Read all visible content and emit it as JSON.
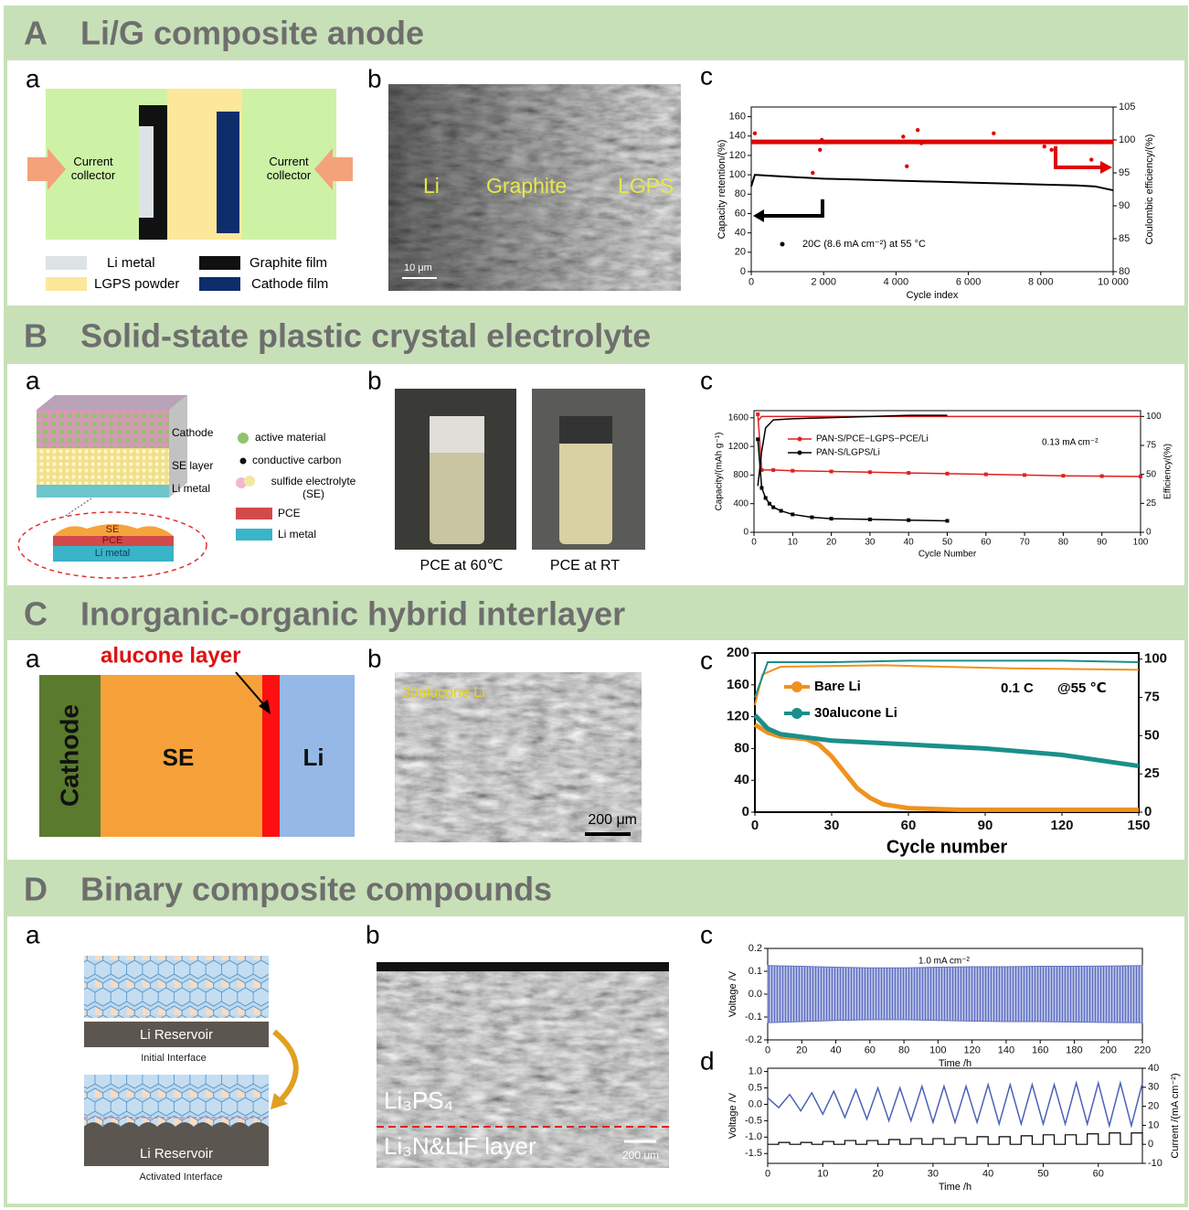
{
  "sections": [
    {
      "letter": "A",
      "title": "Li/G composite anode",
      "panels": [
        {
          "label": "a",
          "texts": [
            "Current collector",
            "Current collector",
            "Li metal",
            "Graphite film",
            "LGPS powder",
            "Cathode film"
          ]
        },
        {
          "label": "b",
          "texts": [
            "Li",
            "Graphite",
            "LGPS",
            "10 μm"
          ]
        },
        {
          "label": "c",
          "chart_data": {
            "type": "line",
            "xlim": [
              0,
              10000
            ],
            "xticks": [
              0,
              {
                "value": 2000,
                "label": "2 000"
              },
              {
                "value": 4000,
                "label": "4 000"
              },
              {
                "value": 6000,
                "label": "6 000"
              },
              {
                "value": 8000,
                "label": "8 000"
              },
              {
                "value": 10000,
                "label": "10 000"
              }
            ],
            "ylim": [
              0,
              170
            ],
            "yticks": [
              0,
              20,
              40,
              60,
              80,
              100,
              120,
              140,
              160
            ],
            "y2lim": [
              80,
              105
            ],
            "y2ticks": [
              80,
              85,
              90,
              95,
              100,
              105
            ],
            "xlabel": "Cycle index",
            "ylabel": "Capacity retention/(%)",
            "y2label": "Coulombic efficiency/(%)",
            "annotations": [
              "20C (8.6 mA cm⁻²) at 55 °C"
            ],
            "series": [
              {
                "color": "#000000",
                "mode": "line",
                "x": [
                  0,
                  100,
                  500,
                  1000,
                  2000,
                  3000,
                  4000,
                  5000,
                  6000,
                  7000,
                  8000,
                  9000,
                  9500,
                  10000
                ],
                "values": [
                  88,
                  100,
                  99,
                  98,
                  96,
                  95,
                  94,
                  93,
                  92,
                  91,
                  90,
                  89,
                  88,
                  84
                ]
              },
              {
                "color": "#e00000",
                "mode": "line",
                "axis": "y2",
                "x": [
                  0,
                  10000
                ],
                "values": [
                  99.7,
                  99.7
                ]
              },
              {
                "color": "#e00000",
                "mode": "points",
                "axis": "y2",
                "x": [
                  100,
                  1700,
                  1900,
                  1950,
                  4200,
                  4300,
                  4600,
                  4700,
                  6700,
                  8100,
                  8300,
                  9400
                ],
                "values": [
                  101,
                  95,
                  98.5,
                  100,
                  100.5,
                  96,
                  101.5,
                  99.5,
                  101,
                  99,
                  98.5,
                  97
                ]
              }
            ]
          }
        }
      ]
    },
    {
      "letter": "B",
      "title": "Solid-state plastic crystal electrolyte",
      "panels": [
        {
          "label": "a",
          "texts": [
            "Cathode",
            "SE layer",
            "Li metal",
            "active material",
            "conductive carbon",
            "sulfide electrolyte (SE)",
            "PCE",
            "Li metal",
            "SE",
            "PCE",
            "Li metal"
          ]
        },
        {
          "label": "b",
          "texts": [
            "PCE at 60℃",
            "PCE at RT"
          ]
        },
        {
          "label": "c",
          "chart_data": {
            "type": "line",
            "xlim": [
              0,
              100
            ],
            "xticks": [
              0,
              10,
              20,
              30,
              40,
              50,
              60,
              70,
              80,
              90,
              100
            ],
            "ylim": [
              0,
              1700
            ],
            "yticks": [
              0,
              400,
              800,
              1200,
              1600
            ],
            "y2lim": [
              0,
              105
            ],
            "y2ticks": [
              0,
              25,
              50,
              75,
              100
            ],
            "xlabel": "Cycle Number",
            "ylabel": "Capacity/(mAh g⁻¹)",
            "y2label": "Efficiency/(%)",
            "annotations": [
              "0.13 mA cm⁻²"
            ],
            "series": [
              {
                "name": "PAN-S/PCE−LGPS−PCE/Li",
                "color": "#e02020",
                "mode": "line+points",
                "x": [
                  1,
                  2,
                  5,
                  10,
                  20,
                  30,
                  40,
                  50,
                  60,
                  70,
                  80,
                  90,
                  100
                ],
                "values": [
                  1650,
                  870,
                  870,
                  860,
                  850,
                  840,
                  830,
                  820,
                  810,
                  800,
                  790,
                  785,
                  780
                ]
              },
              {
                "name": "PAN-S/LGPS/Li",
                "color": "#000000",
                "mode": "line+points",
                "x": [
                  1,
                  2,
                  3,
                  4,
                  5,
                  7,
                  10,
                  15,
                  20,
                  30,
                  40,
                  50
                ],
                "values": [
                  1300,
                  620,
                  480,
                  400,
                  350,
                  300,
                  250,
                  210,
                  190,
                  180,
                  170,
                  160
                ]
              },
              {
                "color": "#e02020",
                "mode": "line",
                "axis": "y2",
                "x": [
                  1,
                  2,
                  100
                ],
                "values": [
                  96,
                  100,
                  100
                ]
              },
              {
                "color": "#000000",
                "mode": "line",
                "axis": "y2",
                "x": [
                  1,
                  2,
                  3,
                  5,
                  10,
                  20,
                  30,
                  40,
                  50
                ],
                "values": [
                  40,
                  70,
                  90,
                  97,
                  98,
                  99,
                  100,
                  101,
                  101
                ]
              }
            ]
          }
        }
      ]
    },
    {
      "letter": "C",
      "title": "Inorganic-organic hybrid interlayer",
      "panels": [
        {
          "label": "a",
          "texts": [
            "alucone layer",
            "Cathode",
            "SE",
            "Li"
          ]
        },
        {
          "label": "b",
          "texts": [
            "30alucone Li",
            "200 μm"
          ]
        },
        {
          "label": "c",
          "chart_data": {
            "type": "line",
            "xlim": [
              0,
              150
            ],
            "xticks": [
              0,
              30,
              60,
              90,
              120,
              150
            ],
            "ylim": [
              0,
              200
            ],
            "yticks": [
              0,
              40,
              80,
              120,
              160,
              200
            ],
            "y2lim": [
              0,
              104
            ],
            "y2ticks": [
              0,
              25,
              50,
              75,
              100
            ],
            "xlabel": "Cycle number",
            "annotations": [
              "0.1 C",
              "@55 ℃"
            ],
            "series": [
              {
                "name": "Bare Li",
                "color": "#f0921e",
                "mode": "line",
                "x": [
                  0,
                  5,
                  10,
                  20,
                  25,
                  30,
                  35,
                  40,
                  45,
                  50,
                  60,
                  80,
                  100,
                  150
                ],
                "values": [
                  110,
                  100,
                  95,
                  92,
                  85,
                  70,
                  50,
                  30,
                  18,
                  10,
                  5,
                  3,
                  3,
                  3
                ]
              },
              {
                "name": "30alucone  Li",
                "color": "#1b8f8a",
                "mode": "line",
                "x": [
                  0,
                  5,
                  10,
                  30,
                  60,
                  90,
                  120,
                  150
                ],
                "values": [
                  122,
                  105,
                  98,
                  90,
                  85,
                  80,
                  72,
                  58
                ]
              },
              {
                "color": "#f0921e",
                "mode": "line",
                "axis": "y2",
                "x": [
                  0,
                  3,
                  10,
                  50,
                  100,
                  150
                ],
                "values": [
                  70,
                  90,
                  95,
                  96,
                  94,
                  93
                ]
              },
              {
                "color": "#1b8f8a",
                "mode": "line",
                "axis": "y2",
                "x": [
                  0,
                  5,
                  30,
                  60,
                  120,
                  150
                ],
                "values": [
                  75,
                  98,
                  98,
                  99,
                  99,
                  98
                ]
              }
            ]
          }
        }
      ]
    },
    {
      "letter": "D",
      "title": "Binary composite compounds",
      "panels": [
        {
          "label": "a",
          "texts": [
            "Li  Reservoir",
            "Initial Interface",
            "Li  Reservoir",
            "Activated Interface"
          ]
        },
        {
          "label": "b",
          "texts": [
            "Li₃PS₄",
            "Li₃N&LiF layer",
            "200 um"
          ]
        },
        {
          "label": "c",
          "chart_data": {
            "type": "line",
            "xlim": [
              0,
              220
            ],
            "xticks": [
              0,
              20,
              40,
              60,
              80,
              100,
              120,
              140,
              160,
              180,
              200,
              220
            ],
            "ylim": [
              -0.2,
              0.2
            ],
            "yticks": [
              -0.2,
              -0.1,
              {
                "value": 0,
                "label": "0.0"
              },
              0.1,
              0.2
            ],
            "xlabel": "Time /h",
            "ylabel": "Voltage /V",
            "annotations": [
              "1.0 mA cm⁻²"
            ],
            "series": [
              {
                "color": "#6474c0",
                "mode": "band",
                "x": [
                  0,
                  20,
                  40,
                  60,
                  80,
                  100,
                  120,
                  140,
                  160,
                  180,
                  200,
                  220
                ],
                "values": [
                  0.125,
                  0.122,
                  0.118,
                  0.115,
                  0.115,
                  0.118,
                  0.12,
                  0.12,
                  0.122,
                  0.122,
                  0.123,
                  0.125
                ],
                "lower": [
                  -0.125,
                  -0.12,
                  -0.115,
                  -0.112,
                  -0.112,
                  -0.115,
                  -0.118,
                  -0.12,
                  -0.12,
                  -0.122,
                  -0.124,
                  -0.125
                ]
              }
            ]
          }
        },
        {
          "label": "d",
          "chart_data": {
            "type": "line",
            "xlim": [
              0,
              68
            ],
            "xticks": [
              0,
              10,
              20,
              30,
              40,
              50,
              60
            ],
            "ylim": [
              -1.8,
              1.1
            ],
            "yticks": [
              -1.5,
              {
                "value": -1,
                "label": "-1.0"
              },
              -0.5,
              {
                "value": 0,
                "label": "0.0"
              },
              0.5,
              {
                "value": 1,
                "label": "1.0"
              }
            ],
            "y2lim": [
              -10,
              40
            ],
            "y2ticks": [
              -10,
              0,
              10,
              20,
              30,
              40
            ],
            "xlabel": "Time /h",
            "ylabel": "Voltage /V",
            "y2label": "Current /(mA cm⁻²)",
            "series": [
              {
                "color": "#4a62b8",
                "mode": "line",
                "x": [
                  0,
                  2,
                  4,
                  6,
                  8,
                  10,
                  12,
                  14,
                  16,
                  18,
                  20,
                  22,
                  24,
                  26,
                  28,
                  30,
                  32,
                  34,
                  36,
                  38,
                  40,
                  42,
                  44,
                  46,
                  48,
                  50,
                  52,
                  54,
                  56,
                  58,
                  60,
                  62,
                  64,
                  66,
                  68
                ],
                "values": [
                  0.2,
                  -0.1,
                  0.3,
                  -0.2,
                  0.35,
                  -0.3,
                  0.4,
                  -0.4,
                  0.45,
                  -0.45,
                  0.5,
                  -0.5,
                  0.5,
                  -0.5,
                  0.55,
                  -0.55,
                  0.55,
                  -0.55,
                  0.55,
                  -0.55,
                  0.6,
                  -0.6,
                  0.6,
                  -0.6,
                  0.6,
                  -0.6,
                  0.6,
                  -0.6,
                  0.65,
                  -0.6,
                  0.65,
                  -0.65,
                  0.65,
                  -0.65,
                  0.65
                ]
              },
              {
                "color": "#000000",
                "mode": "step",
                "axis": "y2",
                "x": [
                  0,
                  2,
                  4,
                  6,
                  8,
                  10,
                  12,
                  14,
                  16,
                  18,
                  20,
                  22,
                  24,
                  26,
                  28,
                  30,
                  32,
                  34,
                  36,
                  38,
                  40,
                  42,
                  44,
                  46,
                  48,
                  50,
                  52,
                  54,
                  56,
                  58,
                  60,
                  62,
                  64,
                  66,
                  68
                ],
                "values": [
                  0,
                  1,
                  0,
                  1,
                  0,
                  1.5,
                  0,
                  2,
                  0,
                  2,
                  0,
                  2.5,
                  0,
                  3,
                  0,
                  3,
                  0,
                  3.5,
                  0,
                  4,
                  0,
                  4,
                  0,
                  4.5,
                  0,
                  5,
                  0,
                  5,
                  0,
                  5.5,
                  0,
                  6,
                  0,
                  6,
                  0
                ]
              }
            ]
          }
        }
      ]
    }
  ]
}
